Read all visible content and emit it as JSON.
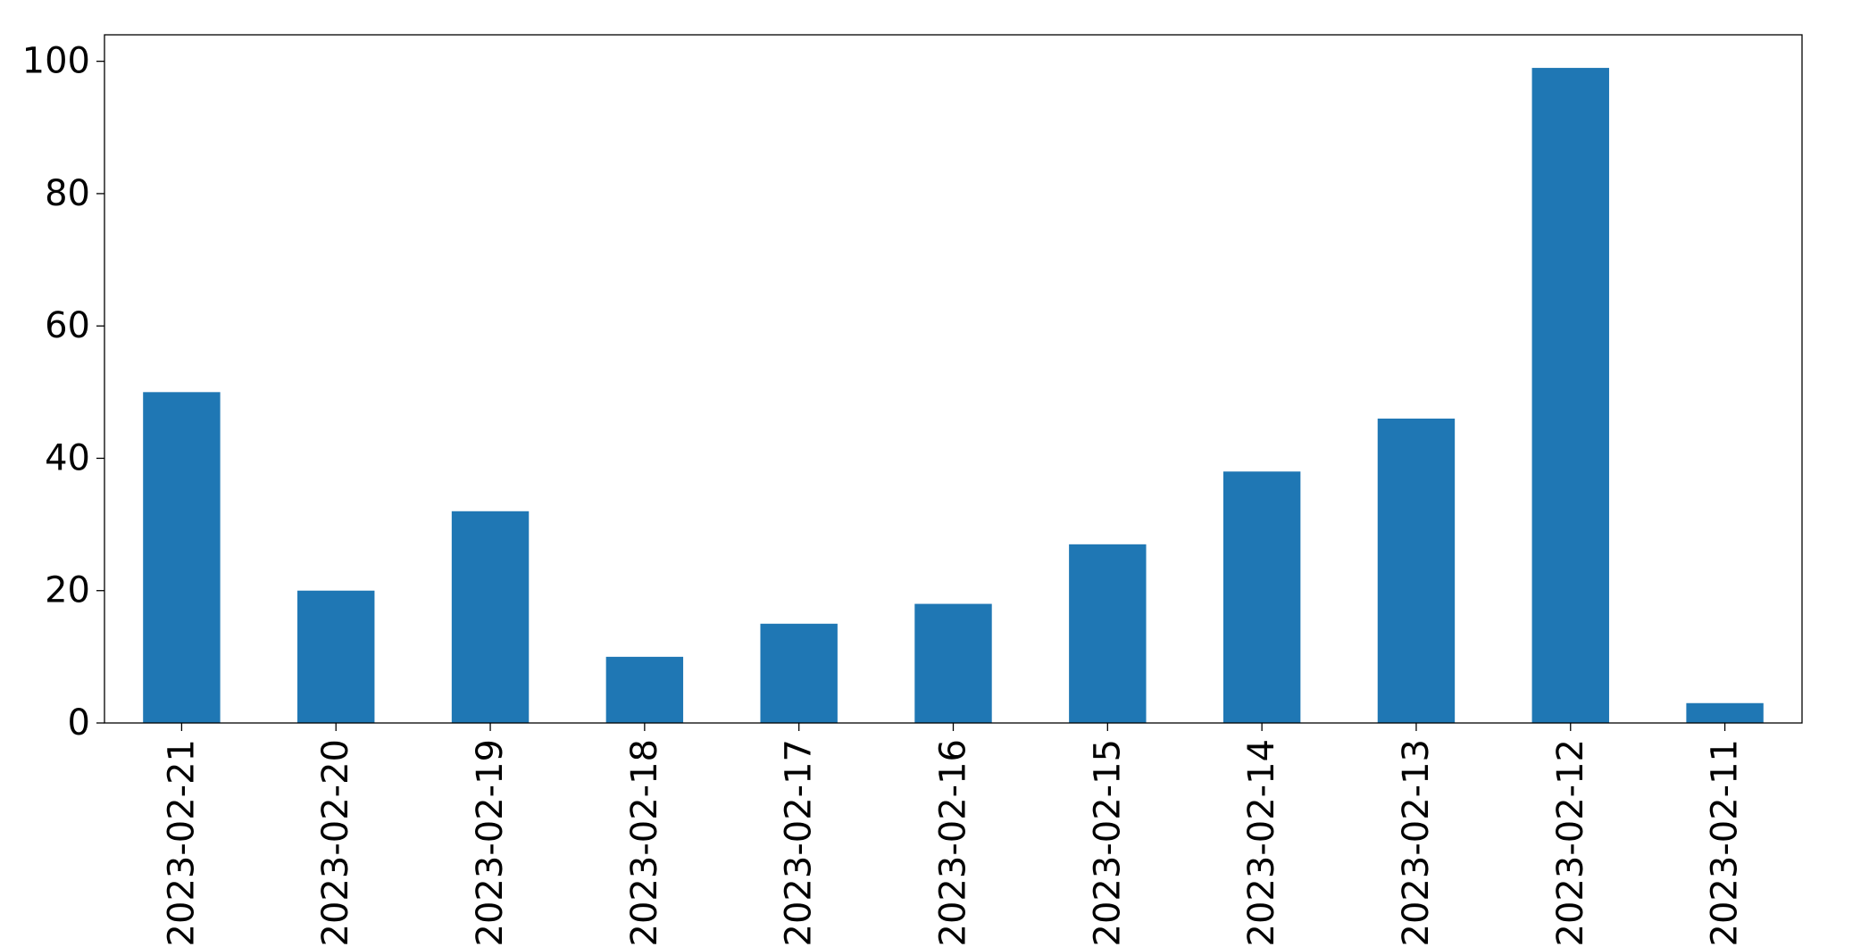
{
  "colors": {
    "bar": "#1f77b4",
    "axis": "#000000",
    "background": "#ffffff"
  },
  "chart_data": {
    "type": "bar",
    "categories": [
      "2023-02-21",
      "2023-02-20",
      "2023-02-19",
      "2023-02-18",
      "2023-02-17",
      "2023-02-16",
      "2023-02-15",
      "2023-02-14",
      "2023-02-13",
      "2023-02-12",
      "2023-02-11"
    ],
    "values": [
      50,
      20,
      32,
      10,
      15,
      18,
      27,
      38,
      46,
      99,
      3
    ],
    "title": "",
    "xlabel": "",
    "ylabel": "",
    "ylim": [
      0,
      104
    ],
    "yticks": [
      0,
      20,
      40,
      60,
      80,
      100
    ],
    "grid": false,
    "legend": "none"
  }
}
